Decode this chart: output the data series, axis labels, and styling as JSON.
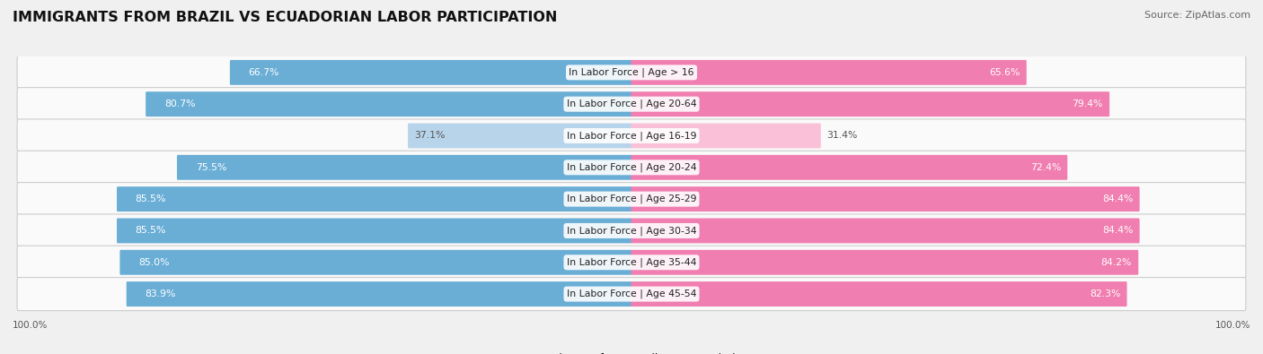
{
  "title": "IMMIGRANTS FROM BRAZIL VS ECUADORIAN LABOR PARTICIPATION",
  "source": "Source: ZipAtlas.com",
  "categories": [
    "In Labor Force | Age > 16",
    "In Labor Force | Age 20-64",
    "In Labor Force | Age 16-19",
    "In Labor Force | Age 20-24",
    "In Labor Force | Age 25-29",
    "In Labor Force | Age 30-34",
    "In Labor Force | Age 35-44",
    "In Labor Force | Age 45-54"
  ],
  "brazil_values": [
    66.7,
    80.7,
    37.1,
    75.5,
    85.5,
    85.5,
    85.0,
    83.9
  ],
  "ecuador_values": [
    65.6,
    79.4,
    31.4,
    72.4,
    84.4,
    84.4,
    84.2,
    82.3
  ],
  "brazil_color_dark": "#6aaed6",
  "brazil_color_light": "#b8d4ea",
  "ecuador_color_dark": "#f07eb0",
  "ecuador_color_light": "#f9c0d8",
  "bg_color": "#f0f0f0",
  "row_bg_color": "#fafafa",
  "legend_brazil": "Immigrants from Brazil",
  "legend_ecuador": "Ecuadorian",
  "title_fontsize": 11.5,
  "label_fontsize": 7.8,
  "value_fontsize": 7.8,
  "legend_fontsize": 8.5,
  "source_fontsize": 8.0
}
